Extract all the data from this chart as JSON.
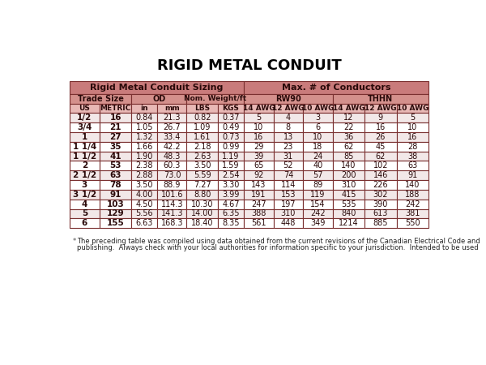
{
  "title": "RIGID METAL CONDUIT",
  "header1_left": "Rigid Metal Conduit Sizing",
  "header1_right": "Max. # of Conductors",
  "header3": [
    "US",
    "METRIC",
    "in",
    "mm",
    "LBS",
    "KGS",
    "14 AWG",
    "12 AWG",
    "10 AWG",
    "14 AWG",
    "12 AWG",
    "10 AWG"
  ],
  "rows": [
    [
      "1/2",
      "16",
      "0.84",
      "21.3",
      "0.82",
      "0.37",
      "5",
      "4",
      "3",
      "12",
      "9",
      "5"
    ],
    [
      "3/4",
      "21",
      "1.05",
      "26.7",
      "1.09",
      "0.49",
      "10",
      "8",
      "6",
      "22",
      "16",
      "10"
    ],
    [
      "1",
      "27",
      "1.32",
      "33.4",
      "1.61",
      "0.73",
      "16",
      "13",
      "10",
      "36",
      "26",
      "16"
    ],
    [
      "1 1/4",
      "35",
      "1.66",
      "42.2",
      "2.18",
      "0.99",
      "29",
      "23",
      "18",
      "62",
      "45",
      "28"
    ],
    [
      "1 1/2",
      "41",
      "1.90",
      "48.3",
      "2.63",
      "1.19",
      "39",
      "31",
      "24",
      "85",
      "62",
      "38"
    ],
    [
      "2",
      "53",
      "2.38",
      "60.3",
      "3.50",
      "1.59",
      "65",
      "52",
      "40",
      "140",
      "102",
      "63"
    ],
    [
      "2 1/2",
      "63",
      "2.88",
      "73.0",
      "5.59",
      "2.54",
      "92",
      "74",
      "57",
      "200",
      "146",
      "91"
    ],
    [
      "3",
      "78",
      "3.50",
      "88.9",
      "7.27",
      "3.30",
      "143",
      "114",
      "89",
      "310",
      "226",
      "140"
    ],
    [
      "3 1/2",
      "91",
      "4.00",
      "101.6",
      "8.80",
      "3.99",
      "191",
      "153",
      "119",
      "415",
      "302",
      "188"
    ],
    [
      "4",
      "103",
      "4.50",
      "114.3",
      "10.30",
      "4.67",
      "247",
      "197",
      "154",
      "535",
      "390",
      "242"
    ],
    [
      "5",
      "129",
      "5.56",
      "141.3",
      "14.00",
      "6.35",
      "388",
      "310",
      "242",
      "840",
      "613",
      "381"
    ],
    [
      "6",
      "155",
      "6.63",
      "168.3",
      "18.40",
      "8.35",
      "561",
      "448",
      "349",
      "1214",
      "885",
      "550"
    ]
  ],
  "footnote_line1": "The preceding table was compiled using data obtained from the current revisions of the Canadian Electrical Code and",
  "footnote_line2": "publishing.  Always check with your local authorities for information specific to your jurisdiction.  Intended to be used",
  "color_header_main": "#C97B7B",
  "color_header_sub": "#D4908C",
  "color_header_col": "#E8B8B5",
  "color_row_odd": "#F2E8E8",
  "color_row_even": "#FFFFFF",
  "color_border": "#7A3030",
  "color_text": "#2A0A0A",
  "bg_color": "#FFFFFF",
  "title_color": "#000000"
}
